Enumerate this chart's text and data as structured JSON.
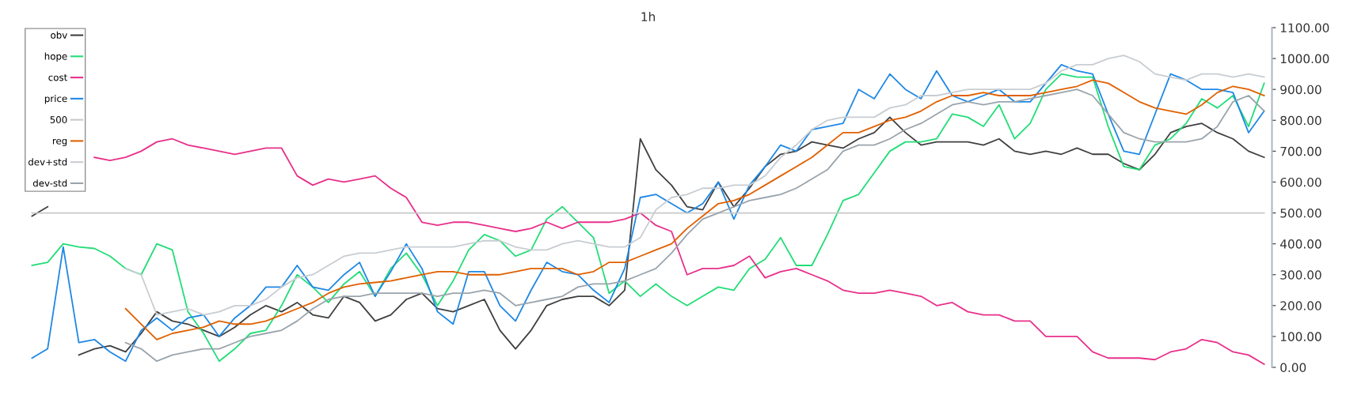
{
  "chart_data": {
    "type": "line",
    "title": "1h",
    "categories": [
      null,
      null,
      null,
      null,
      null,
      null,
      null,
      null,
      null,
      null,
      null,
      null,
      null,
      null,
      null,
      null,
      null,
      null,
      null,
      null,
      null,
      null,
      null,
      null,
      null,
      null,
      null,
      null,
      null,
      null,
      null,
      null,
      null,
      null,
      null,
      null,
      null,
      null,
      null,
      null,
      null,
      null,
      null,
      null,
      null,
      null,
      null,
      null,
      null,
      null,
      null,
      null,
      null,
      null,
      null,
      null,
      null,
      null,
      null,
      null,
      null,
      null,
      null,
      null,
      null,
      null,
      null,
      null,
      null,
      null,
      null,
      null,
      null,
      null,
      null,
      null,
      null,
      null,
      null,
      null
    ],
    "ylim": [
      0,
      1100
    ],
    "yticks": [
      {
        "value": 0,
        "label": "0.00"
      },
      {
        "value": 100,
        "label": "100.00"
      },
      {
        "value": 200,
        "label": "200.00"
      },
      {
        "value": 300,
        "label": "300.00"
      },
      {
        "value": 400,
        "label": "400.00"
      },
      {
        "value": 500,
        "label": "500.00"
      },
      {
        "value": 600,
        "label": "600.00"
      },
      {
        "value": 700,
        "label": "700.00"
      },
      {
        "value": 800,
        "label": "800.00"
      },
      {
        "value": 900,
        "label": "900.00"
      },
      {
        "value": 1000,
        "label": "1000.00"
      },
      {
        "value": 1100,
        "label": "1100.00"
      }
    ],
    "tick_labels": "y",
    "grid": false,
    "legend": "top left",
    "marker": "none",
    "line_style": "solid",
    "series": [
      {
        "name": "obv",
        "color": "#404040",
        "values": [
          490,
          520,
          null,
          40,
          60,
          70,
          50,
          110,
          180,
          150,
          140,
          120,
          100,
          130,
          170,
          200,
          180,
          210,
          170,
          160,
          230,
          210,
          150,
          170,
          220,
          240,
          190,
          180,
          200,
          220,
          120,
          60,
          120,
          200,
          220,
          230,
          230,
          200,
          250,
          740,
          640,
          590,
          520,
          510,
          600,
          520,
          580,
          650,
          690,
          700,
          730,
          720,
          710,
          740,
          760,
          810,
          760,
          720,
          730,
          730,
          730,
          720,
          740,
          700,
          690,
          700,
          690,
          710,
          690,
          690,
          660,
          640,
          690,
          760,
          780,
          790,
          760,
          740,
          700,
          680
        ]
      },
      {
        "name": "hope",
        "color": "#22dd77",
        "values": [
          330,
          340,
          400,
          390,
          385,
          360,
          320,
          300,
          400,
          380,
          180,
          110,
          20,
          60,
          110,
          120,
          200,
          300,
          260,
          210,
          270,
          310,
          230,
          320,
          370,
          300,
          200,
          280,
          380,
          430,
          410,
          360,
          380,
          480,
          520,
          470,
          420,
          240,
          280,
          230,
          270,
          230,
          200,
          230,
          260,
          250,
          320,
          350,
          420,
          330,
          330,
          430,
          540,
          560,
          630,
          700,
          730,
          730,
          740,
          820,
          810,
          780,
          850,
          740,
          790,
          900,
          950,
          940,
          940,
          780,
          650,
          640,
          720,
          740,
          790,
          870,
          840,
          880,
          780,
          920
        ]
      },
      {
        "name": "cost",
        "color": "#e8308a",
        "values": [
          null,
          null,
          null,
          null,
          680,
          670,
          680,
          700,
          730,
          740,
          720,
          710,
          700,
          690,
          700,
          710,
          710,
          620,
          590,
          610,
          600,
          610,
          620,
          580,
          550,
          470,
          460,
          470,
          470,
          460,
          450,
          440,
          450,
          470,
          450,
          470,
          470,
          470,
          480,
          500,
          460,
          440,
          300,
          320,
          320,
          330,
          360,
          290,
          310,
          320,
          300,
          280,
          250,
          240,
          240,
          250,
          240,
          230,
          200,
          210,
          180,
          170,
          170,
          150,
          150,
          100,
          100,
          100,
          50,
          30,
          30,
          30,
          25,
          50,
          60,
          90,
          80,
          50,
          40,
          10
        ]
      },
      {
        "name": "price",
        "color": "#1e88e5",
        "values": [
          30,
          60,
          390,
          80,
          90,
          50,
          20,
          120,
          160,
          120,
          160,
          170,
          100,
          160,
          200,
          260,
          260,
          330,
          260,
          250,
          300,
          340,
          230,
          310,
          400,
          320,
          180,
          140,
          310,
          310,
          200,
          150,
          250,
          340,
          310,
          300,
          250,
          210,
          320,
          550,
          560,
          530,
          500,
          530,
          600,
          480,
          590,
          650,
          720,
          700,
          770,
          780,
          790,
          900,
          870,
          950,
          900,
          870,
          960,
          880,
          860,
          880,
          900,
          860,
          860,
          920,
          980,
          960,
          950,
          820,
          700,
          690,
          820,
          950,
          930,
          900,
          900,
          890,
          760,
          830
        ]
      },
      {
        "name": "500",
        "color": "#c8c8c8",
        "values": [
          500,
          500,
          500,
          500,
          500,
          500,
          500,
          500,
          500,
          500,
          500,
          500,
          500,
          500,
          500,
          500,
          500,
          500,
          500,
          500,
          500,
          500,
          500,
          500,
          500,
          500,
          500,
          500,
          500,
          500,
          500,
          500,
          500,
          500,
          500,
          500,
          500,
          500,
          500,
          500,
          500,
          500,
          500,
          500,
          500,
          500,
          500,
          500,
          500,
          500,
          500,
          500,
          500,
          500,
          500,
          500,
          500,
          500,
          500,
          500,
          500,
          500,
          500,
          500,
          500,
          500,
          500,
          500,
          500,
          500,
          500,
          500,
          500,
          500,
          500,
          500,
          500,
          500,
          500,
          500
        ]
      },
      {
        "name": "reg",
        "color": "#e06000",
        "values": [
          null,
          null,
          null,
          null,
          null,
          null,
          190,
          140,
          90,
          110,
          120,
          130,
          150,
          140,
          140,
          150,
          170,
          190,
          210,
          240,
          260,
          270,
          275,
          280,
          290,
          300,
          310,
          310,
          300,
          300,
          300,
          310,
          320,
          320,
          320,
          300,
          310,
          340,
          340,
          360,
          380,
          400,
          450,
          490,
          530,
          540,
          560,
          590,
          620,
          650,
          680,
          720,
          760,
          760,
          780,
          800,
          810,
          830,
          860,
          880,
          880,
          890,
          880,
          880,
          880,
          890,
          900,
          910,
          930,
          920,
          890,
          860,
          840,
          830,
          820,
          850,
          890,
          910,
          900,
          880
        ]
      },
      {
        "name": "dev+std",
        "color": "#c8cdd2",
        "values": [
          null,
          null,
          null,
          null,
          null,
          null,
          320,
          300,
          170,
          180,
          190,
          170,
          180,
          200,
          200,
          220,
          260,
          290,
          300,
          330,
          360,
          370,
          370,
          380,
          390,
          390,
          390,
          390,
          400,
          410,
          410,
          390,
          380,
          380,
          400,
          410,
          400,
          390,
          390,
          420,
          510,
          550,
          560,
          580,
          580,
          590,
          590,
          620,
          680,
          720,
          770,
          800,
          810,
          810,
          810,
          840,
          850,
          880,
          880,
          890,
          900,
          900,
          900,
          900,
          900,
          920,
          960,
          980,
          980,
          1000,
          1010,
          990,
          950,
          940,
          930,
          950,
          950,
          940,
          950,
          940
        ]
      },
      {
        "name": "dev-std",
        "color": "#9aa4ac",
        "values": [
          null,
          null,
          null,
          null,
          null,
          null,
          80,
          60,
          20,
          40,
          50,
          60,
          60,
          80,
          100,
          110,
          120,
          150,
          190,
          220,
          230,
          230,
          240,
          240,
          240,
          240,
          230,
          240,
          240,
          250,
          240,
          200,
          210,
          220,
          230,
          260,
          270,
          270,
          280,
          300,
          320,
          370,
          430,
          480,
          500,
          520,
          540,
          550,
          560,
          580,
          610,
          640,
          700,
          720,
          720,
          740,
          770,
          790,
          820,
          850,
          860,
          850,
          860,
          860,
          870,
          880,
          890,
          900,
          880,
          820,
          760,
          740,
          730,
          730,
          730,
          740,
          780,
          860,
          880,
          830
        ]
      }
    ]
  }
}
